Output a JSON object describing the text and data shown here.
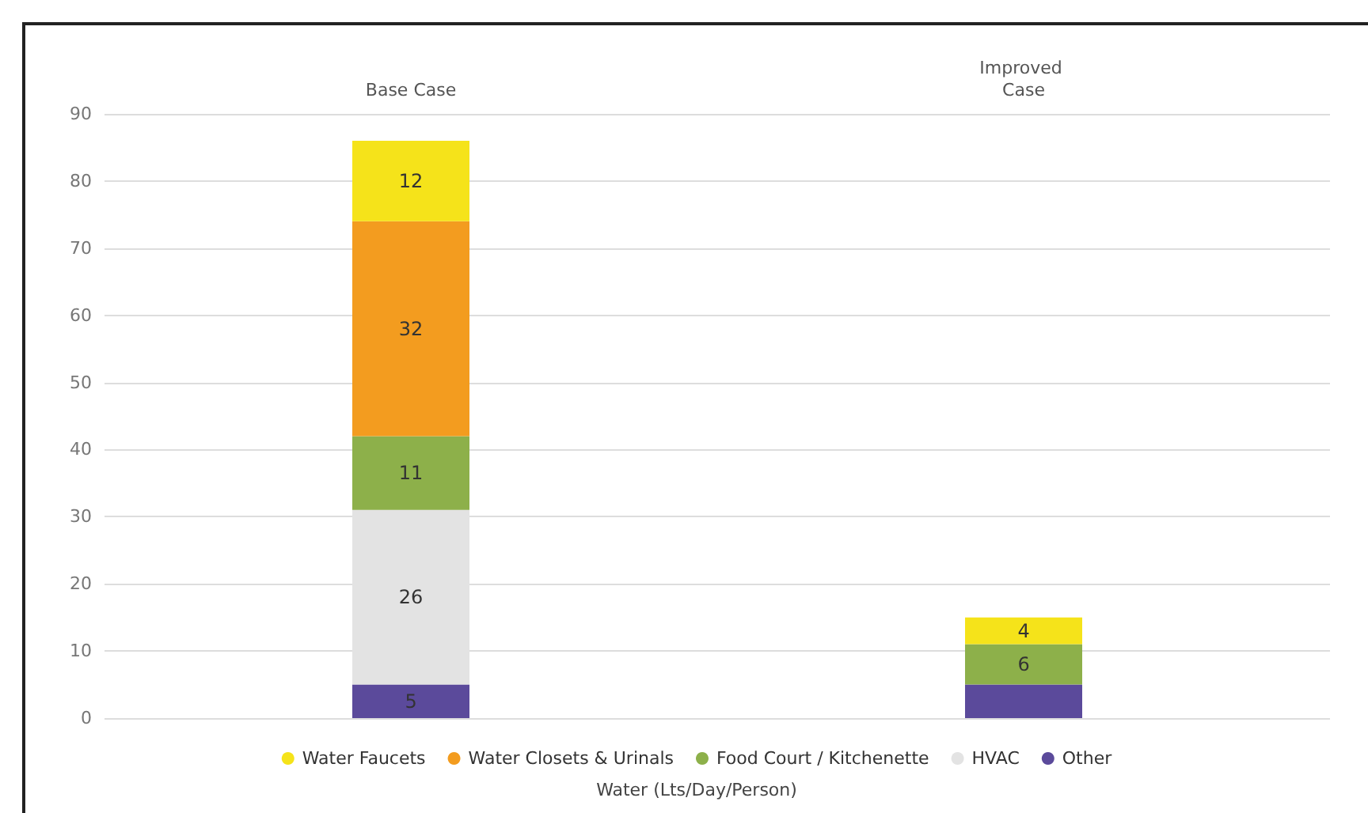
{
  "chart_data": {
    "type": "bar",
    "stacked": true,
    "categories": [
      "Base Case",
      "Improved Case"
    ],
    "xlabel": "Water (Lts/Day/Person)",
    "series": [
      {
        "name": "Other",
        "color": "#5b4a9b",
        "values": [
          5,
          5
        ],
        "value_labels": [
          "5",
          null
        ]
      },
      {
        "name": "HVAC",
        "color": "#e3e3e3",
        "values": [
          26,
          null
        ],
        "value_labels": [
          "26",
          null
        ]
      },
      {
        "name": "Food Court / Kitchenette",
        "color": "#8db04a",
        "values": [
          11,
          6
        ],
        "value_labels": [
          "11",
          "6"
        ]
      },
      {
        "name": "Water Closets & Urinals",
        "color": "#f39c1f",
        "values": [
          32,
          null
        ],
        "value_labels": [
          "32",
          null
        ]
      },
      {
        "name": "Water Faucets",
        "color": "#f5e31a",
        "values": [
          12,
          4
        ],
        "value_labels": [
          "12",
          "4"
        ]
      }
    ],
    "ylim": [
      0,
      90
    ],
    "yticks": [
      0,
      10,
      20,
      30,
      40,
      50,
      60,
      70,
      80,
      90
    ],
    "grid": "y",
    "legend": "bottom"
  }
}
